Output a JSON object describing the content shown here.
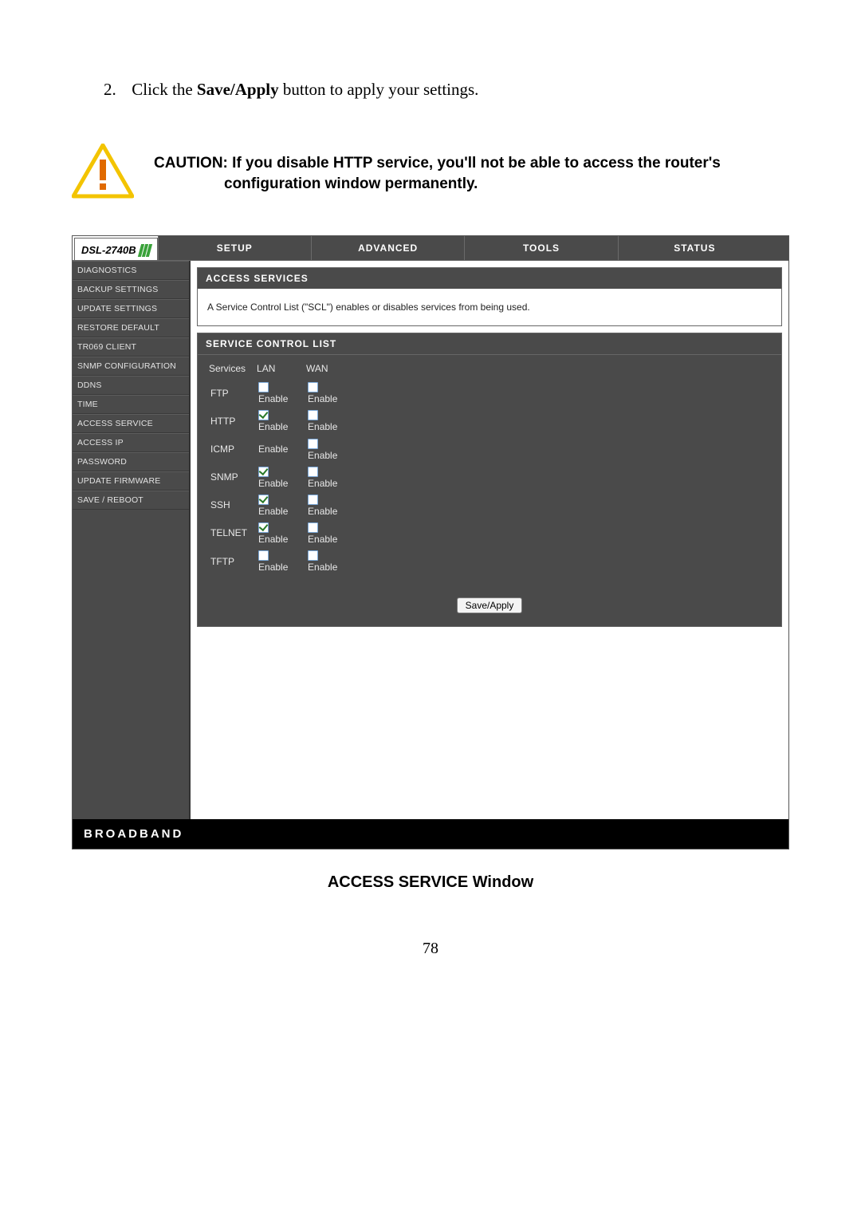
{
  "instruction": {
    "number": "2.",
    "prefix": "Click the ",
    "bold": "Save/Apply",
    "suffix": " button to apply your settings."
  },
  "caution": {
    "label": "CAUTION:",
    "line1_rest": " If you disable HTTP service, you'll not be able to access the router's",
    "line2": "configuration window permanently."
  },
  "router": {
    "model": "DSL-2740B",
    "nav": [
      "SETUP",
      "ADVANCED",
      "TOOLS",
      "STATUS"
    ],
    "sidebar": [
      "DIAGNOSTICS",
      "BACKUP SETTINGS",
      "UPDATE SETTINGS",
      "RESTORE DEFAULT",
      "TR069 CLIENT",
      "SNMP CONFIGURATION",
      "DDNS",
      "TIME",
      "ACCESS SERVICE",
      "ACCESS IP",
      "PASSWORD",
      "UPDATE FIRMWARE",
      "SAVE / REBOOT"
    ],
    "panel1": {
      "title": "ACCESS SERVICES",
      "desc": "A Service Control List (\"SCL\") enables or disables services from being used."
    },
    "panel2": {
      "title": "SERVICE CONTROL LIST",
      "col_services": "Services",
      "col_lan": "LAN",
      "col_wan": "WAN",
      "enable_label": "Enable",
      "rows": [
        {
          "name": "FTP",
          "lan_show": true,
          "lan_checked": false,
          "wan_show": true,
          "wan_checked": false
        },
        {
          "name": "HTTP",
          "lan_show": true,
          "lan_checked": true,
          "wan_show": true,
          "wan_checked": false
        },
        {
          "name": "ICMP",
          "lan_show": false,
          "lan_checked": false,
          "wan_show": true,
          "wan_checked": false
        },
        {
          "name": "SNMP",
          "lan_show": true,
          "lan_checked": true,
          "wan_show": true,
          "wan_checked": false
        },
        {
          "name": "SSH",
          "lan_show": true,
          "lan_checked": true,
          "wan_show": true,
          "wan_checked": false
        },
        {
          "name": "TELNET",
          "lan_show": true,
          "lan_checked": true,
          "wan_show": true,
          "wan_checked": false
        },
        {
          "name": "TFTP",
          "lan_show": true,
          "lan_checked": false,
          "wan_show": true,
          "wan_checked": false
        }
      ],
      "save_button": "Save/Apply"
    },
    "footer": "BROADBAND"
  },
  "figure_caption": "ACCESS SERVICE Window",
  "page_number": "78",
  "colors": {
    "dark_panel": "#4a4a4a",
    "checkbox_border": "#7aa8d8",
    "check_mark": "#2a7a2a",
    "bar_green": "#3aa23a"
  }
}
